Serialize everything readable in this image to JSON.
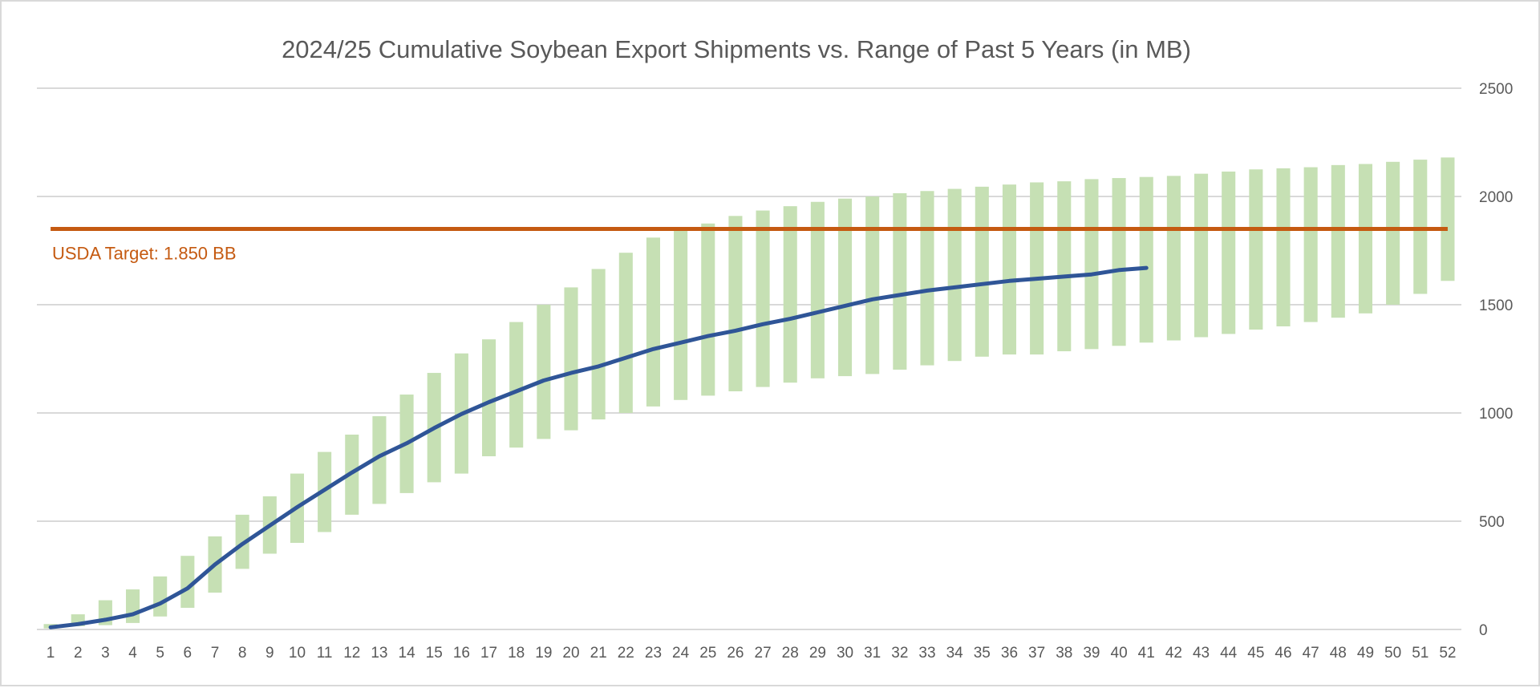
{
  "chart_data": {
    "type": "bar",
    "title": "2024/25 Cumulative Soybean Export Shipments vs. Range of Past 5 Years (in MB)",
    "x_categories": [
      "1",
      "2",
      "3",
      "4",
      "5",
      "6",
      "7",
      "8",
      "9",
      "10",
      "11",
      "12",
      "13",
      "14",
      "15",
      "16",
      "17",
      "18",
      "19",
      "20",
      "21",
      "22",
      "23",
      "24",
      "25",
      "26",
      "27",
      "28",
      "29",
      "30",
      "31",
      "32",
      "33",
      "34",
      "35",
      "36",
      "37",
      "38",
      "39",
      "40",
      "41",
      "42",
      "43",
      "44",
      "45",
      "46",
      "47",
      "48",
      "49",
      "50",
      "51",
      "52"
    ],
    "y_axis": {
      "min": 0,
      "max": 2500,
      "ticks": [
        0,
        500,
        1000,
        1500,
        2000,
        2500
      ],
      "position": "right",
      "grid": true
    },
    "range_series": {
      "color": "#c6e0b4",
      "low": [
        5,
        15,
        20,
        30,
        60,
        100,
        170,
        280,
        350,
        400,
        450,
        530,
        580,
        630,
        680,
        720,
        800,
        840,
        880,
        920,
        970,
        1000,
        1030,
        1060,
        1080,
        1100,
        1120,
        1140,
        1160,
        1170,
        1180,
        1200,
        1220,
        1240,
        1260,
        1270,
        1270,
        1285,
        1295,
        1310,
        1325,
        1335,
        1350,
        1365,
        1385,
        1400,
        1420,
        1440,
        1460,
        1500,
        1550,
        1610
      ],
      "high": [
        25,
        70,
        135,
        185,
        245,
        340,
        430,
        530,
        615,
        720,
        820,
        900,
        985,
        1085,
        1185,
        1275,
        1340,
        1420,
        1500,
        1580,
        1665,
        1740,
        1810,
        1845,
        1875,
        1910,
        1935,
        1955,
        1975,
        1990,
        2000,
        2015,
        2025,
        2035,
        2045,
        2055,
        2065,
        2070,
        2080,
        2085,
        2090,
        2095,
        2105,
        2115,
        2125,
        2130,
        2135,
        2145,
        2150,
        2160,
        2170,
        2180
      ]
    },
    "current_series": {
      "color": "#2f5597",
      "values": [
        10,
        25,
        45,
        70,
        120,
        190,
        300,
        395,
        480,
        565,
        645,
        725,
        800,
        860,
        930,
        995,
        1050,
        1100,
        1150,
        1185,
        1215,
        1255,
        1295,
        1325,
        1355,
        1380,
        1410,
        1435,
        1465,
        1495,
        1525,
        1545,
        1565,
        1580,
        1595,
        1610,
        1620,
        1630,
        1640,
        1660,
        1670
      ]
    },
    "target_line": {
      "value": 1850,
      "color": "#c55a11",
      "label": "USDA Target: 1.850 BB"
    }
  }
}
